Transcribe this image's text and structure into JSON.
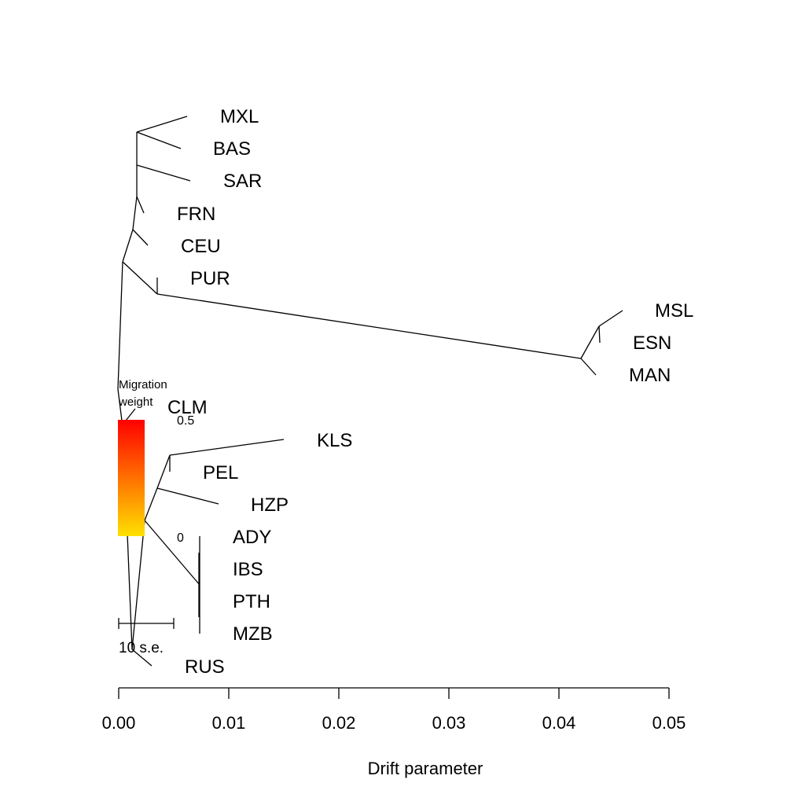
{
  "tree": {
    "labels": [
      "MXL",
      "BAS",
      "SAR",
      "FRN",
      "CEU",
      "PUR",
      "MSL",
      "ESN",
      "MAN",
      "CLM",
      "KLS",
      "PEL",
      "HZP",
      "ADY",
      "IBS",
      "PTH",
      "MZB",
      "RUS"
    ]
  },
  "x_axis": {
    "label": "Drift parameter",
    "ticks": [
      "0.00",
      "0.01",
      "0.02",
      "0.03",
      "0.04",
      "0.05"
    ]
  },
  "migration_legend": {
    "title_line1": "Migration",
    "title_line2": "weight",
    "max_label": "0.5",
    "min_label": "0",
    "color_top": "#FF0000",
    "color_bottom": "#FFE000"
  },
  "scale_bar": {
    "label": "10 s.e."
  }
}
